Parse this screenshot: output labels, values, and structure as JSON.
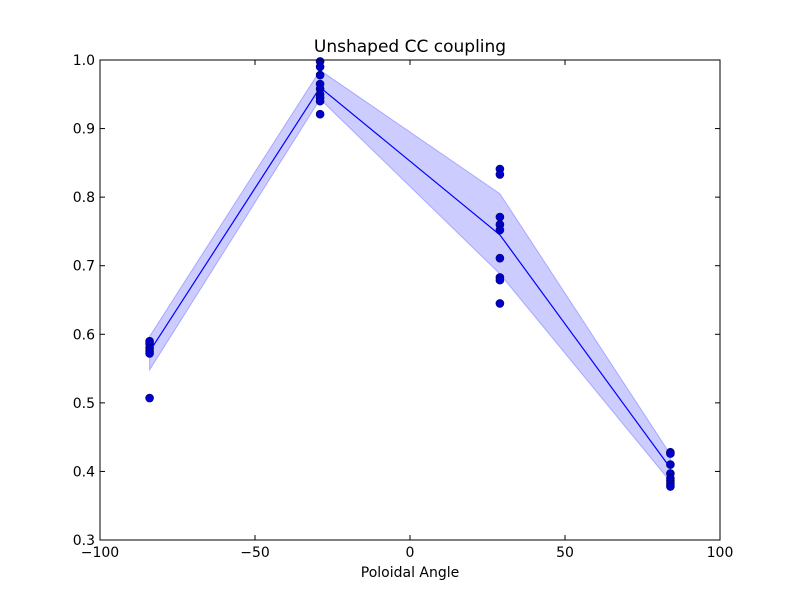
{
  "chart_data": {
    "type": "scatter",
    "title": "Unshaped CC coupling",
    "xlabel": "Poloidal Angle",
    "ylabel": "",
    "xlim": [
      -100,
      100
    ],
    "ylim": [
      0.3,
      1.0
    ],
    "xticks": [
      -100,
      -50,
      0,
      50,
      100
    ],
    "xtick_labels": [
      "−100",
      "−50",
      "0",
      "50",
      "100"
    ],
    "yticks": [
      0.3,
      0.4,
      0.5,
      0.6,
      0.7,
      0.8,
      0.9,
      1.0
    ],
    "ytick_labels": [
      "0.3",
      "0.4",
      "0.5",
      "0.6",
      "0.7",
      "0.8",
      "0.9",
      "1.0"
    ],
    "grid": false,
    "legend": "none",
    "colors": {
      "points": "#0000cc",
      "line": "#0000ff",
      "band": "#0000ff"
    },
    "points": {
      "x": [
        -84,
        -84,
        -84,
        -84,
        -84,
        -84,
        -29,
        -29,
        -29,
        -29,
        -29,
        -29,
        -29,
        -29,
        -29,
        29,
        29,
        29,
        29,
        29,
        29,
        29,
        29,
        29,
        84,
        84,
        84,
        84,
        84,
        84,
        84,
        84
      ],
      "y": [
        0.59,
        0.586,
        0.58,
        0.576,
        0.572,
        0.507,
        0.998,
        0.99,
        0.978,
        0.965,
        0.958,
        0.95,
        0.945,
        0.94,
        0.921,
        0.841,
        0.833,
        0.771,
        0.76,
        0.752,
        0.711,
        0.683,
        0.679,
        0.645,
        0.428,
        0.426,
        0.41,
        0.397,
        0.39,
        0.386,
        0.382,
        0.378
      ]
    },
    "mean_line": {
      "x": [
        -84,
        -29,
        29,
        84
      ],
      "y": [
        0.575,
        0.96,
        0.745,
        0.405
      ]
    },
    "band": {
      "x": [
        -84,
        -29,
        29,
        84
      ],
      "lower": [
        0.548,
        0.943,
        0.688,
        0.385
      ],
      "upper": [
        0.597,
        0.985,
        0.805,
        0.425
      ]
    }
  }
}
